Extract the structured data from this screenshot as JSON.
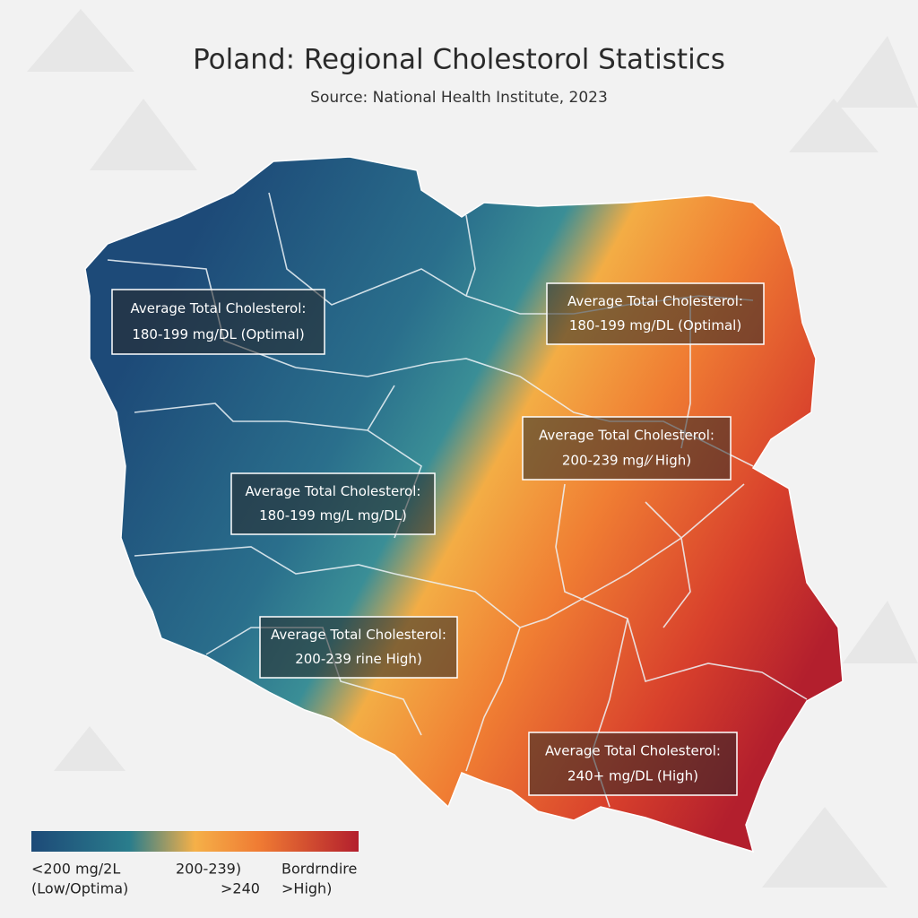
{
  "header": {
    "title": "Poland: Regional Cholestorol Statistics",
    "subtitle": "Source: National Health Institute, 2023"
  },
  "map": {
    "labels": [
      {
        "line1": "Average Total Cholesterol:",
        "line2": "180-199 mg/DL (Optimal)"
      },
      {
        "line1": "Average Total Cholesterol:",
        "line2": "180-199 mg/DL (Optimal)"
      },
      {
        "line1": "Average Total Cholesterol:",
        "line2": "200-239 mg/⁄ High)"
      },
      {
        "line1": "Average Total Cholesterol:",
        "line2": "180-199 mg/L mg/DL)"
      },
      {
        "line1": "Average Total Cholesterol:",
        "line2": "200-239 rine High)"
      },
      {
        "line1": "Average Total Cholesterol:",
        "line2": "240+ mg/DL (High)"
      }
    ]
  },
  "legend": {
    "labels": [
      "<200 mg/2L",
      "(Low/Optima)",
      "200-239)",
      ">240",
      "Bordrndire",
      ">High)"
    ]
  }
}
